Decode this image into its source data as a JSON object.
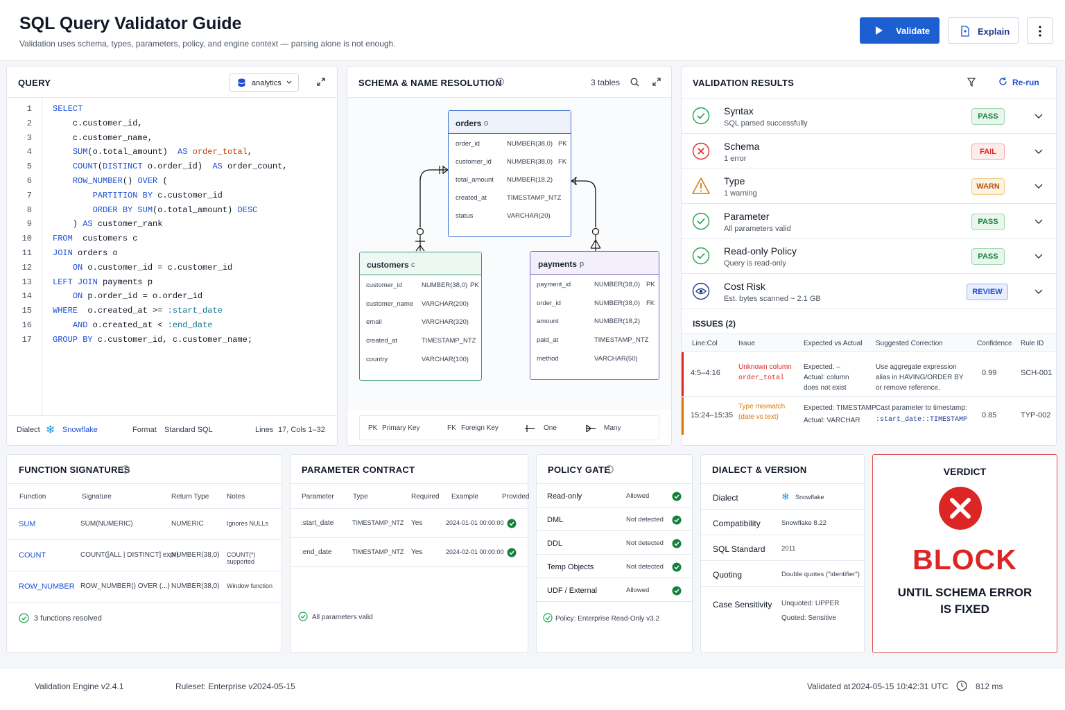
{
  "header": {
    "title": "SQL Query Validator Guide",
    "subtitle": "Validation uses schema, types, parameters, policy, and engine context — parsing alone is not enough.",
    "validate_label": "Validate",
    "explain_label": "Explain"
  },
  "query": {
    "title": "QUERY",
    "database": "analytics",
    "line_numbers": [
      "1",
      "2",
      "3",
      "4",
      "5",
      "6",
      "7",
      "8",
      "9",
      "10",
      "11",
      "12",
      "13",
      "14",
      "15",
      "16",
      "17"
    ],
    "footer": {
      "dialect_label": "Dialect",
      "dialect_value": "Snowflake",
      "format_label": "Format",
      "format_value": "Standard SQL",
      "lines_label": "Lines",
      "lines_value": "17, Cols 1–32"
    }
  },
  "schema": {
    "title": "SCHEMA & NAME RESOLUTION",
    "count": "3 tables",
    "tables": {
      "orders": {
        "name": "orders",
        "alias": "o",
        "cols": [
          {
            "n": "order_id",
            "t": "NUMBER(38,0)",
            "k": "PK"
          },
          {
            "n": "customer_id",
            "t": "NUMBER(38,0)",
            "k": "FK"
          },
          {
            "n": "total_amount",
            "t": "NUMBER(18,2)",
            "k": ""
          },
          {
            "n": "created_at",
            "t": "TIMESTAMP_NTZ",
            "k": ""
          },
          {
            "n": "status",
            "t": "VARCHAR(20)",
            "k": ""
          }
        ]
      },
      "customers": {
        "name": "customers",
        "alias": "c",
        "cols": [
          {
            "n": "customer_id",
            "t": "NUMBER(38,0)",
            "k": "PK"
          },
          {
            "n": "customer_name",
            "t": "VARCHAR(200)",
            "k": ""
          },
          {
            "n": "email",
            "t": "VARCHAR(320)",
            "k": ""
          },
          {
            "n": "created_at",
            "t": "TIMESTAMP_NTZ",
            "k": ""
          },
          {
            "n": "country",
            "t": "VARCHAR(100)",
            "k": ""
          }
        ]
      },
      "payments": {
        "name": "payments",
        "alias": "p",
        "cols": [
          {
            "n": "payment_id",
            "t": "NUMBER(38,0)",
            "k": "PK"
          },
          {
            "n": "order_id",
            "t": "NUMBER(38,0)",
            "k": "FK"
          },
          {
            "n": "amount",
            "t": "NUMBER(18,2)",
            "k": ""
          },
          {
            "n": "paid_at",
            "t": "TIMESTAMP_NTZ",
            "k": ""
          },
          {
            "n": "method",
            "t": "VARCHAR(50)",
            "k": ""
          }
        ]
      }
    },
    "legend": {
      "pk": "PK",
      "pk_label": "Primary Key",
      "fk": "FK",
      "fk_label": "Foreign Key",
      "one": "One",
      "many": "Many"
    }
  },
  "results": {
    "title": "VALIDATION RESULTS",
    "rerun": "Re-run",
    "checks": [
      {
        "name": "Syntax",
        "detail": "SQL parsed successfully",
        "status": "PASS",
        "icon": "check-circle-icon"
      },
      {
        "name": "Schema",
        "detail": "1 error",
        "status": "FAIL",
        "icon": "x-circle-icon"
      },
      {
        "name": "Type",
        "detail": "1 warning",
        "status": "WARN",
        "icon": "warning-triangle-icon"
      },
      {
        "name": "Parameter",
        "detail": "All parameters valid",
        "status": "PASS",
        "icon": "check-circle-icon"
      },
      {
        "name": "Read-only Policy",
        "detail": "Query is read-only",
        "status": "PASS",
        "icon": "check-circle-icon"
      },
      {
        "name": "Cost Risk",
        "detail": "Est. bytes scanned ~ 2.1 GB",
        "status": "REVIEW",
        "icon": "eye-icon"
      }
    ],
    "issues_title": "ISSUES (2)",
    "issue_headers": [
      "Line:Col",
      "Issue",
      "Expected vs Actual",
      "Suggested Correction",
      "Confidence",
      "Rule ID"
    ],
    "issues": [
      {
        "loc": "4:5–4:16",
        "issue1": "Unknown column",
        "issue2": "order_total",
        "exp1": "Expected: –",
        "exp2": "Actual: column",
        "exp3": "does not exist",
        "fix1": "Use aggregate expression",
        "fix2": "alias in HAVING/ORDER BY",
        "fix3": "or remove reference.",
        "conf": "0.99",
        "rule": "SCH-001"
      },
      {
        "loc": "15:24–15:35",
        "issue1": "Type mismatch",
        "issue2": "(date vs text)",
        "exp1": "Expected: TIMESTAMP",
        "exp2": "Actual: VARCHAR",
        "fix1": "Cast parameter to timestamp:",
        "fix2": ":start_date::TIMESTAMP",
        "conf": "0.85",
        "rule": "TYP-002"
      }
    ]
  },
  "functions": {
    "title": "FUNCTION SIGNATURES",
    "headers": [
      "Function",
      "Signature",
      "Return Type",
      "Notes"
    ],
    "rows": [
      {
        "fn": "SUM",
        "sig": "SUM(NUMERIC)",
        "ret": "NUMERIC",
        "note": "Ignores NULLs"
      },
      {
        "fn": "COUNT",
        "sig": "COUNT([ALL | DISTINCT] expr)",
        "ret": "NUMBER(38,0)",
        "note": "COUNT(*) supported"
      },
      {
        "fn": "ROW_NUMBER",
        "sig": "ROW_NUMBER() OVER (...)",
        "ret": "NUMBER(38,0)",
        "note": "Window function"
      }
    ],
    "footer": "3 functions resolved"
  },
  "params": {
    "title": "PARAMETER CONTRACT",
    "headers": [
      "Parameter",
      "Type",
      "Required",
      "Example",
      "Provided"
    ],
    "rows": [
      {
        "p": ":start_date",
        "t": "TIMESTAMP_NTZ",
        "r": "Yes",
        "e": "2024-01-01 00:00:00"
      },
      {
        "p": ":end_date",
        "t": "TIMESTAMP_NTZ",
        "r": "Yes",
        "e": "2024-02-01 00:00:00"
      }
    ],
    "footer": "All parameters valid"
  },
  "policy": {
    "title": "POLICY GATE",
    "rows": [
      {
        "name": "Read-only",
        "value": "Allowed"
      },
      {
        "name": "DML",
        "value": "Not detected"
      },
      {
        "name": "DDL",
        "value": "Not detected"
      },
      {
        "name": "Temp Objects",
        "value": "Not detected"
      },
      {
        "name": "UDF / External",
        "value": "Allowed"
      }
    ],
    "footer": "Policy: Enterprise Read-Only v3.2"
  },
  "dialect": {
    "title": "DIALECT & VERSION",
    "rows": [
      {
        "k": "Dialect",
        "v": "Snowflake"
      },
      {
        "k": "Compatibility",
        "v": "Snowflake 8.22"
      },
      {
        "k": "SQL Standard",
        "v": "2011"
      },
      {
        "k": "Quoting",
        "v": "Double quotes (\"identifier\")"
      }
    ],
    "case_label": "Case Sensitivity",
    "case_v1": "Unquoted: UPPER",
    "case_v2": "Quoted: Sensitive"
  },
  "verdict": {
    "title": "VERDICT",
    "main": "BLOCK",
    "line1": "UNTIL SCHEMA ERROR",
    "line2": "IS FIXED"
  },
  "footer": {
    "engine": "Validation Engine v2.4.1",
    "ruleset": "Ruleset:  Enterprise v2024-05-15",
    "validated_label": "Validated at",
    "validated_value": "2024-05-15 10:42:31 UTC",
    "duration": "812 ms"
  },
  "colors": {
    "primary": "#1d5fd1",
    "pass": "#16a34a",
    "fail": "#dc2626",
    "warn": "#d97706",
    "review": "#1d4ed8"
  }
}
